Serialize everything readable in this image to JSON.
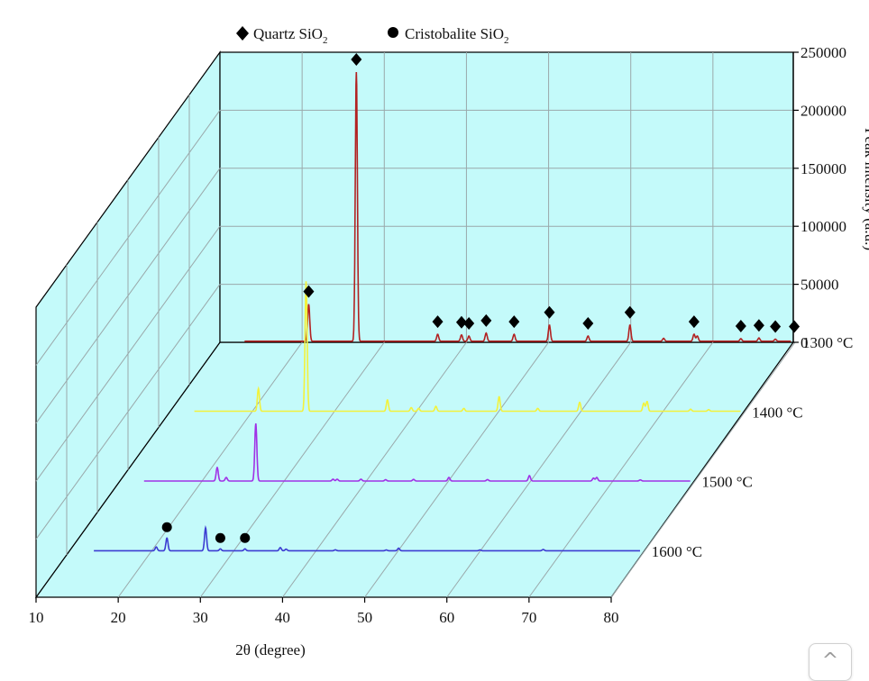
{
  "chart_data": {
    "type": "line",
    "subtype": "3d-waterfall",
    "title": "",
    "xlabel": "2θ (degree)",
    "ylabel": "Peak intensity (a.u.)",
    "xlim": [
      10,
      80
    ],
    "xticks": [
      10,
      20,
      30,
      40,
      50,
      60,
      70,
      80
    ],
    "ylim": [
      0,
      250000
    ],
    "yticks": [
      0,
      50000,
      100000,
      150000,
      200000,
      250000
    ],
    "ytick_labels": [
      "0",
      "50000",
      "100000",
      "150000",
      "200000",
      "250000"
    ],
    "grid": true,
    "legend": {
      "placement": "top",
      "entries": [
        {
          "marker": "diamond",
          "label": "Quartz SiO",
          "sub": "2"
        },
        {
          "marker": "circle",
          "label": "Cristobalite SiO",
          "sub": "2"
        }
      ]
    },
    "series": [
      {
        "name": "1300 °C",
        "color": "#b22222",
        "baseline": 900,
        "peaks": [
          [
            20.8,
            32000
          ],
          [
            26.6,
            232000
          ],
          [
            36.5,
            6000
          ],
          [
            39.4,
            5500
          ],
          [
            40.3,
            4500
          ],
          [
            42.4,
            7000
          ],
          [
            45.8,
            6000
          ],
          [
            50.1,
            14000
          ],
          [
            54.8,
            4500
          ],
          [
            59.9,
            14000
          ],
          [
            64.0,
            2500
          ],
          [
            67.7,
            6000
          ],
          [
            68.1,
            4500
          ],
          [
            73.4,
            2200
          ],
          [
            75.6,
            2800
          ],
          [
            77.6,
            1800
          ],
          [
            79.9,
            1800
          ]
        ]
      },
      {
        "name": "1400 °C",
        "color": "#f2f23c",
        "baseline": 900,
        "peaks": [
          [
            20.8,
            28000
          ],
          [
            26.6,
            160000
          ],
          [
            36.5,
            14000
          ],
          [
            39.4,
            4500
          ],
          [
            40.3,
            3500
          ],
          [
            42.4,
            6000
          ],
          [
            45.8,
            3500
          ],
          [
            50.1,
            18000
          ],
          [
            54.8,
            3500
          ],
          [
            59.9,
            11000
          ],
          [
            67.7,
            10000
          ],
          [
            68.1,
            12000
          ],
          [
            73.4,
            2500
          ],
          [
            75.6,
            2000
          ]
        ]
      },
      {
        "name": "1500 °C",
        "color": "#a032e6",
        "baseline": 900,
        "peaks": [
          [
            21.9,
            19000
          ],
          [
            23.0,
            5000
          ],
          [
            26.6,
            80000
          ],
          [
            36.0,
            2500
          ],
          [
            36.5,
            2500
          ],
          [
            39.4,
            2500
          ],
          [
            42.4,
            1800
          ],
          [
            45.8,
            2200
          ],
          [
            50.1,
            5000
          ],
          [
            54.8,
            2000
          ],
          [
            59.9,
            7500
          ],
          [
            67.7,
            4000
          ],
          [
            68.1,
            5000
          ],
          [
            73.4,
            1500
          ]
        ]
      },
      {
        "name": "1600 °C",
        "color": "#3c3cd2",
        "baseline": 900,
        "peaks": [
          [
            21.9,
            20000
          ],
          [
            20.6,
            6000
          ],
          [
            26.6,
            36000
          ],
          [
            28.4,
            3000
          ],
          [
            31.4,
            3000
          ],
          [
            35.7,
            5000
          ],
          [
            36.4,
            2500
          ],
          [
            42.4,
            1500
          ],
          [
            48.6,
            1200
          ],
          [
            50.1,
            4000
          ],
          [
            60.0,
            1200
          ],
          [
            67.7,
            2000
          ]
        ]
      }
    ],
    "annotations": {
      "quartz_diamonds": [
        20.8,
        26.6,
        36.5,
        39.4,
        40.3,
        42.4,
        45.8,
        50.1,
        54.8,
        59.9,
        67.7,
        73.4,
        75.6,
        77.6,
        79.9
      ],
      "cristobalite_circles": [
        21.9,
        28.4,
        31.4
      ]
    }
  },
  "ui": {
    "scroll_top_label": "^"
  }
}
